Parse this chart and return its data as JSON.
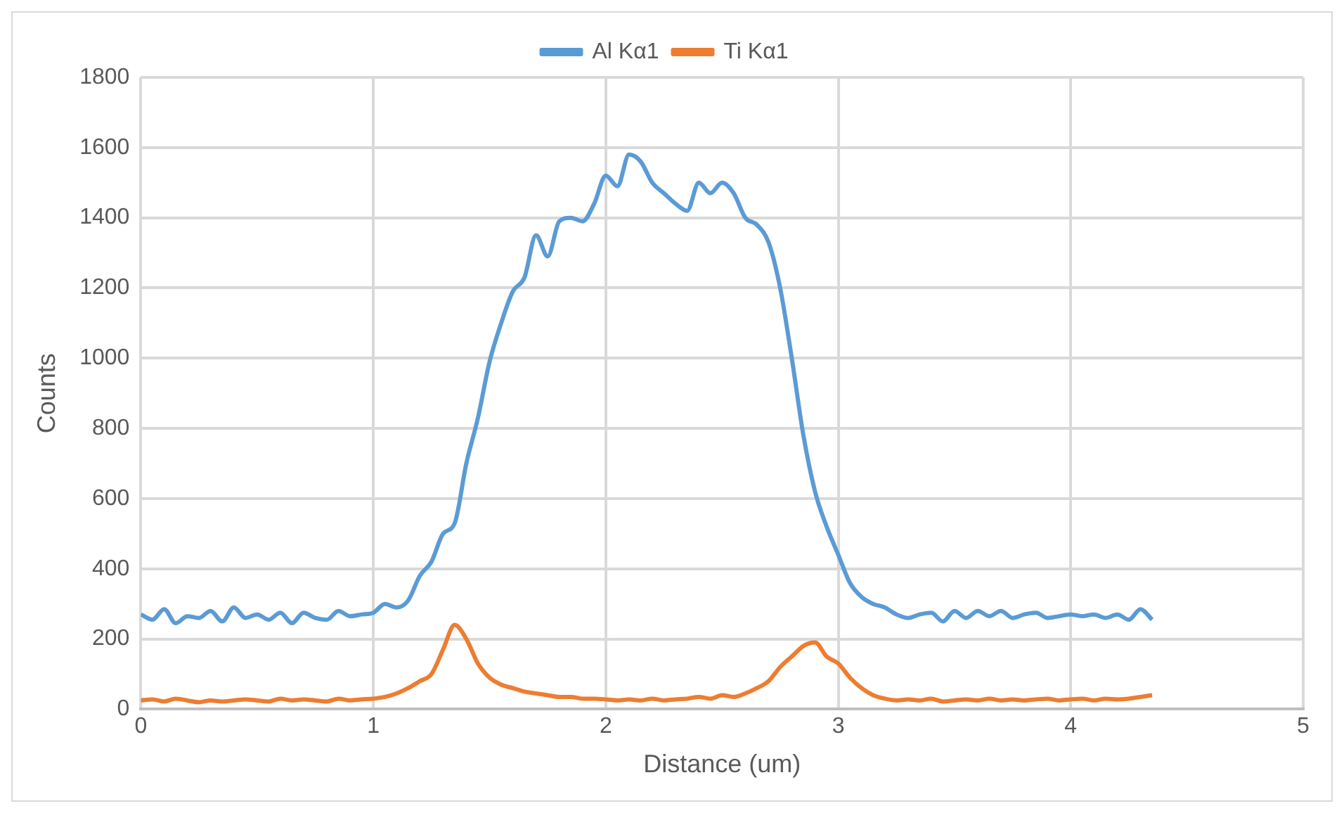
{
  "chart_data": {
    "type": "line",
    "xlabel": "Distance (um)",
    "ylabel": "Counts",
    "xlim": [
      0,
      5
    ],
    "xticks": [
      0,
      1,
      2,
      3,
      4,
      5
    ],
    "ylim": [
      0,
      1800
    ],
    "yticks": [
      0,
      200,
      400,
      600,
      800,
      1000,
      1200,
      1400,
      1600,
      1800
    ],
    "grid": true,
    "legend": "top",
    "marker": "none",
    "line_style": "solid",
    "x": [
      0,
      0.05,
      0.1,
      0.15,
      0.2,
      0.25,
      0.3,
      0.35,
      0.4,
      0.45,
      0.5,
      0.55,
      0.6,
      0.65,
      0.7,
      0.75,
      0.8,
      0.85,
      0.9,
      0.95,
      1,
      1.05,
      1.1,
      1.15,
      1.2,
      1.25,
      1.3,
      1.35,
      1.4,
      1.45,
      1.5,
      1.55,
      1.6,
      1.65,
      1.7,
      1.75,
      1.8,
      1.85,
      1.9,
      1.95,
      2,
      2.05,
      2.1,
      2.15,
      2.2,
      2.25,
      2.3,
      2.35,
      2.4,
      2.45,
      2.5,
      2.55,
      2.6,
      2.65,
      2.7,
      2.75,
      2.8,
      2.85,
      2.9,
      2.95,
      3,
      3.05,
      3.1,
      3.15,
      3.2,
      3.25,
      3.3,
      3.35,
      3.4,
      3.45,
      3.5,
      3.55,
      3.6,
      3.65,
      3.7,
      3.75,
      3.8,
      3.85,
      3.9,
      3.95,
      4,
      4.05,
      4.1,
      4.15,
      4.2,
      4.25,
      4.3,
      4.35
    ],
    "series": [
      {
        "name": "Al Kα1",
        "color": "#5b9bd5",
        "values": [
          270,
          255,
          285,
          245,
          265,
          260,
          280,
          250,
          290,
          260,
          270,
          255,
          275,
          245,
          275,
          260,
          255,
          280,
          265,
          270,
          275,
          300,
          290,
          310,
          380,
          420,
          500,
          530,
          700,
          830,
          990,
          1100,
          1190,
          1230,
          1350,
          1290,
          1390,
          1400,
          1390,
          1440,
          1520,
          1490,
          1580,
          1560,
          1500,
          1470,
          1440,
          1420,
          1500,
          1470,
          1500,
          1470,
          1400,
          1380,
          1330,
          1200,
          1000,
          780,
          620,
          520,
          440,
          360,
          320,
          300,
          290,
          270,
          260,
          270,
          275,
          250,
          280,
          260,
          280,
          265,
          280,
          260,
          270,
          275,
          260,
          265,
          270,
          265,
          270,
          260,
          270,
          255,
          285,
          255
        ]
      },
      {
        "name": "Ti Kα1",
        "color": "#ed7d31",
        "values": [
          25,
          28,
          22,
          30,
          25,
          20,
          25,
          22,
          25,
          28,
          25,
          22,
          30,
          25,
          28,
          25,
          22,
          30,
          25,
          28,
          30,
          35,
          45,
          60,
          80,
          100,
          170,
          240,
          200,
          130,
          90,
          70,
          60,
          50,
          45,
          40,
          35,
          35,
          30,
          30,
          28,
          25,
          28,
          25,
          30,
          25,
          28,
          30,
          35,
          30,
          40,
          35,
          45,
          60,
          80,
          120,
          150,
          180,
          190,
          150,
          130,
          90,
          60,
          40,
          30,
          25,
          28,
          25,
          30,
          22,
          25,
          28,
          25,
          30,
          25,
          28,
          25,
          28,
          30,
          25,
          28,
          30,
          25,
          30,
          28,
          30,
          35,
          40
        ]
      }
    ]
  }
}
